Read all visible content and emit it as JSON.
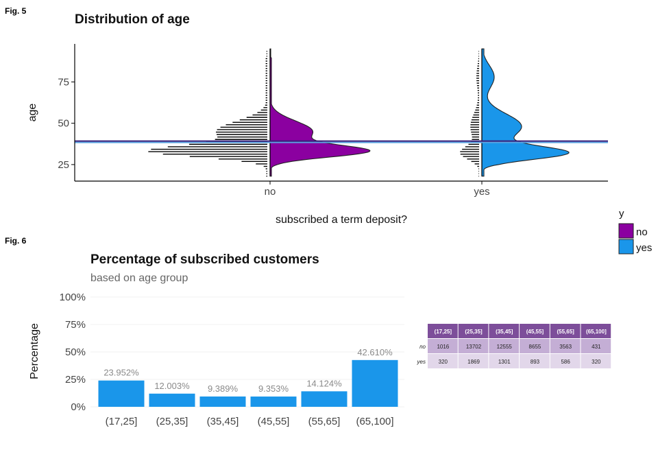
{
  "colors": {
    "no": "#8b00a0",
    "yes": "#1a96ea",
    "table_header": "#7d4e9a",
    "table_row_no": "#c4aed5",
    "table_row_yes": "#e2d7ea"
  },
  "fig5": {
    "label": "Fig. 5",
    "chart_data": {
      "type": "violin",
      "title": "Distribution of age",
      "xlabel": "subscribed a term deposit?",
      "ylabel": "age",
      "categories": [
        "no",
        "yes"
      ],
      "yticks": [
        25,
        50,
        75
      ],
      "ylim": [
        15,
        98
      ],
      "age_range": [
        18,
        95
      ],
      "mean_age": {
        "no": 39,
        "yes": 39
      },
      "mode_age": {
        "no": 32,
        "yes": 32
      },
      "histogram_bins": 52,
      "legend": {
        "title": "y",
        "entries": [
          "no",
          "yes"
        ],
        "position": "right"
      }
    }
  },
  "fig6": {
    "label": "Fig. 6",
    "chart_data": {
      "type": "bar",
      "title": "Percentage of subscribed customers",
      "subtitle": "based on age group",
      "ylabel": "Percentage",
      "xlabel": "",
      "categories": [
        "(17,25]",
        "(25,35]",
        "(35,45]",
        "(45,55]",
        "(55,65]",
        "(65,100]"
      ],
      "values": [
        23.952,
        12.003,
        9.389,
        9.353,
        14.124,
        42.61
      ],
      "value_labels": [
        "23.952%",
        "12.003%",
        "9.389%",
        "9.353%",
        "14.124%",
        "42.610%"
      ],
      "yticks": [
        "0%",
        "25%",
        "50%",
        "75%",
        "100%"
      ],
      "ylim": [
        0,
        100
      ]
    },
    "table": {
      "columns": [
        "(17,25]",
        "(25,35]",
        "(35,45]",
        "(45,55]",
        "(55,65]",
        "(65,100]"
      ],
      "rows": [
        {
          "label": "no",
          "values": [
            "1016",
            "13702",
            "12555",
            "8655",
            "3563",
            "431"
          ]
        },
        {
          "label": "yes",
          "values": [
            "320",
            "1869",
            "1301",
            "893",
            "586",
            "320"
          ]
        }
      ]
    }
  }
}
